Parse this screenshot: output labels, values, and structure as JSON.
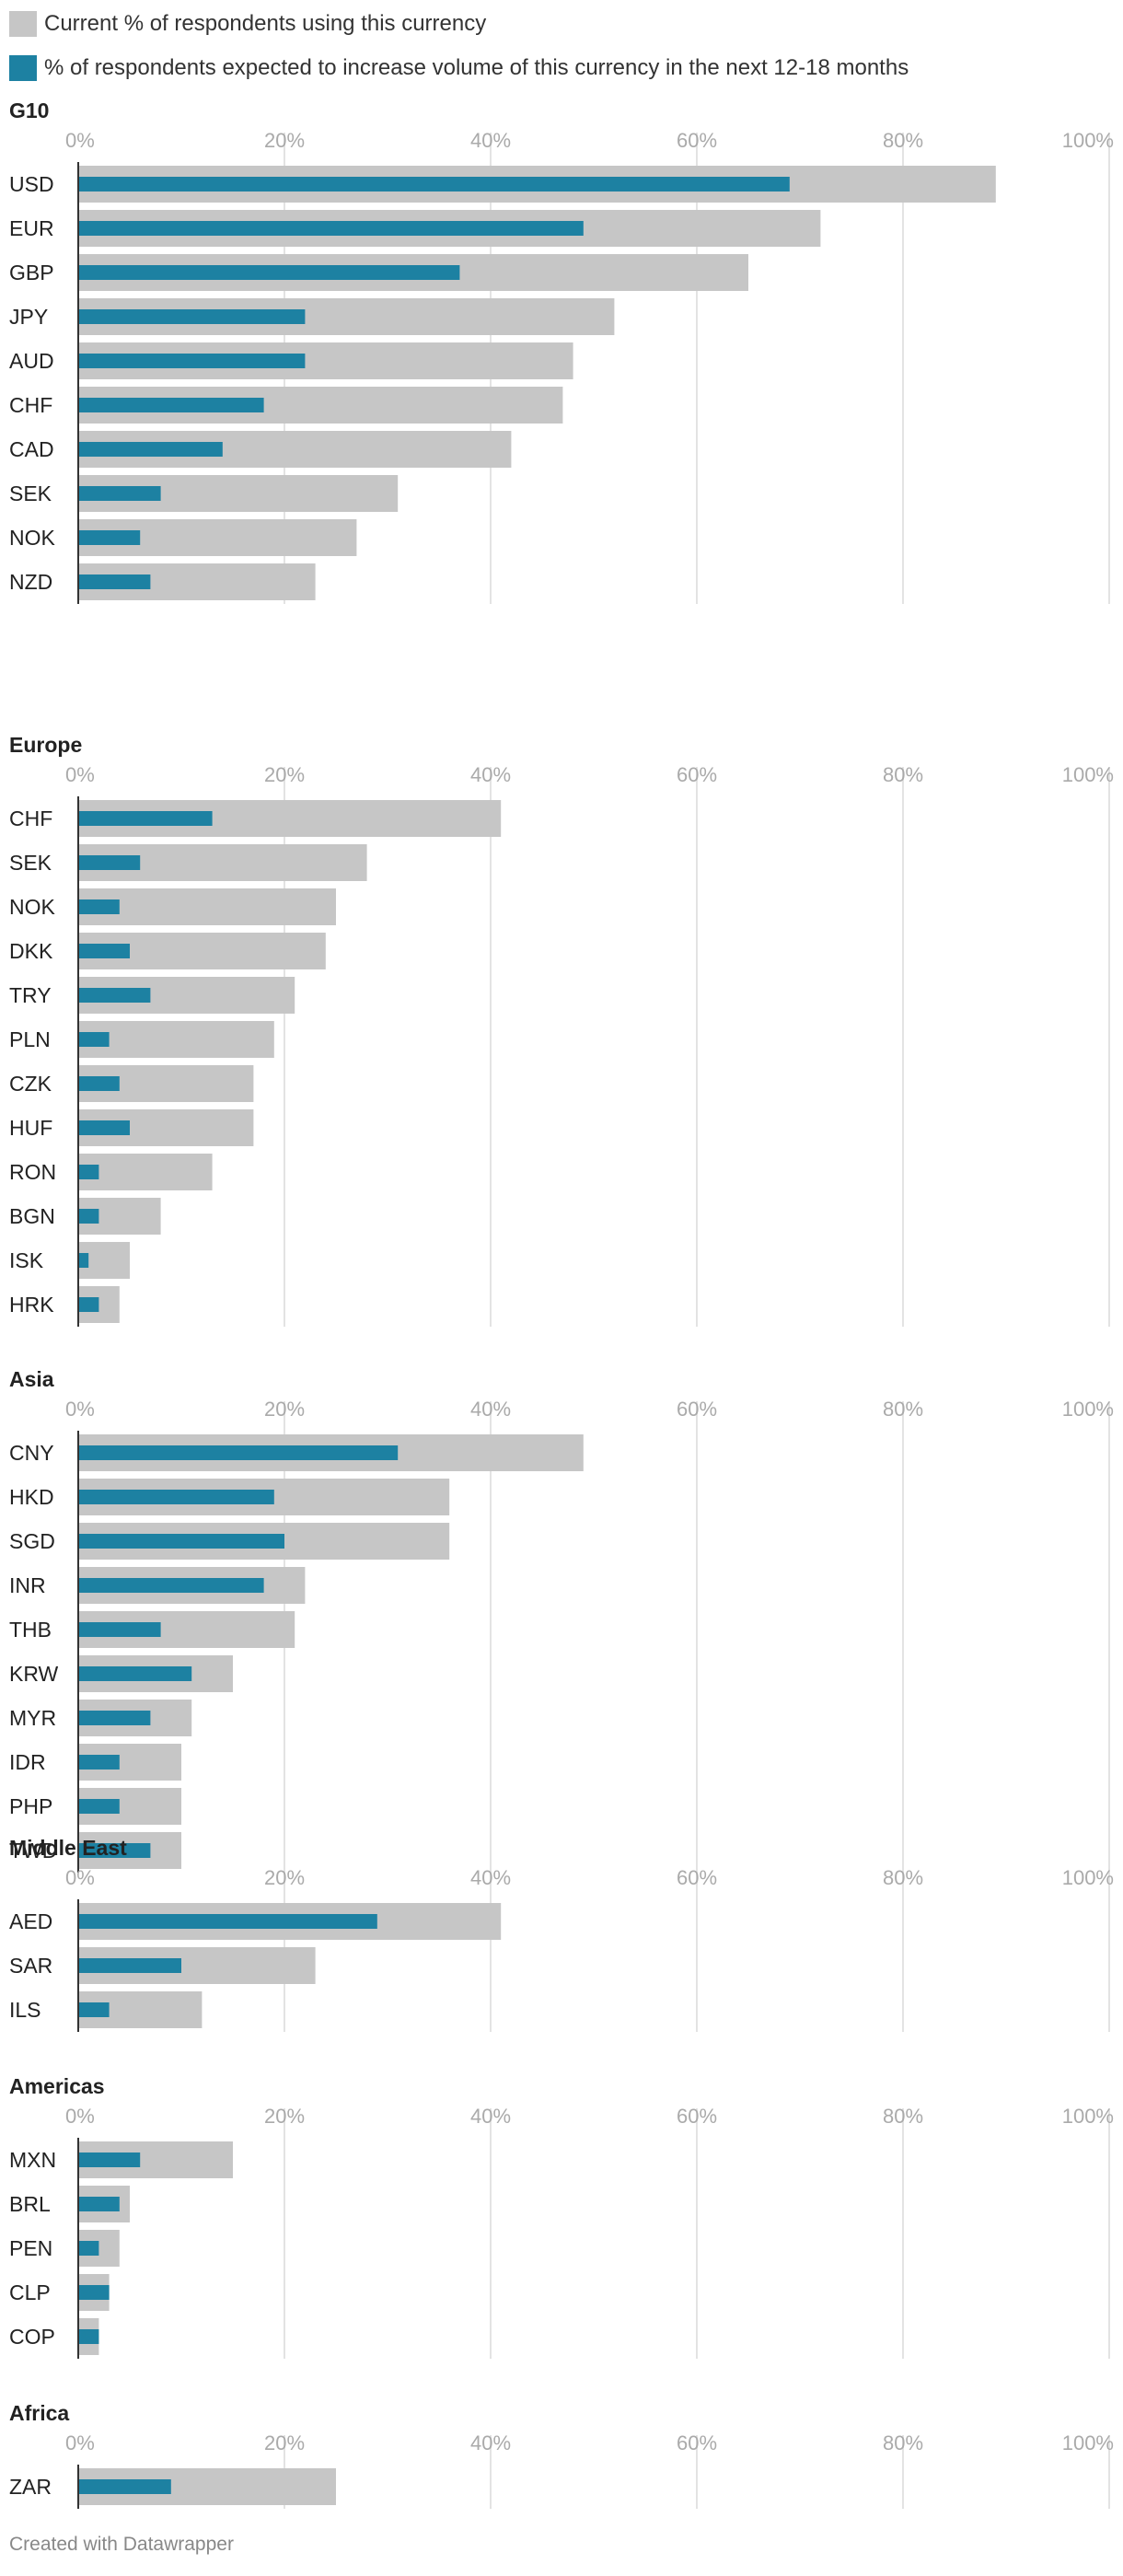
{
  "legend": {
    "current_label": "Current % of respondents using this currency",
    "expected_label": "% of respondents expected to increase volume of this currency in the next 12-18 months",
    "current_color": "#c6c6c6",
    "expected_color": "#1d81a2"
  },
  "footer": "Created with Datawrapper",
  "chart_data": [
    {
      "type": "bar",
      "title": "G10",
      "xlim": [
        0,
        100
      ],
      "ticks": [
        "0%",
        "20%",
        "40%",
        "60%",
        "80%",
        "100%"
      ],
      "categories": [
        "USD",
        "EUR",
        "GBP",
        "JPY",
        "AUD",
        "CHF",
        "CAD",
        "SEK",
        "NOK",
        "NZD"
      ],
      "series": [
        {
          "name": "Current % of respondents using this currency",
          "values": [
            89,
            72,
            65,
            52,
            48,
            47,
            42,
            31,
            27,
            23
          ]
        },
        {
          "name": "% of respondents expected to increase volume of this currency in the next 12-18 months",
          "values": [
            69,
            49,
            37,
            22,
            22,
            18,
            14,
            8,
            6,
            7
          ]
        }
      ]
    },
    {
      "type": "bar",
      "title": "Europe",
      "xlim": [
        0,
        100
      ],
      "ticks": [
        "0%",
        "20%",
        "40%",
        "60%",
        "80%",
        "100%"
      ],
      "categories": [
        "CHF",
        "SEK",
        "NOK",
        "DKK",
        "TRY",
        "PLN",
        "CZK",
        "HUF",
        "RON",
        "BGN",
        "ISK",
        "HRK"
      ],
      "series": [
        {
          "name": "Current % of respondents using this currency",
          "values": [
            41,
            28,
            25,
            24,
            21,
            19,
            17,
            17,
            13,
            8,
            5,
            4
          ]
        },
        {
          "name": "% of respondents expected to increase volume of this currency in the next 12-18 months",
          "values": [
            13,
            6,
            4,
            5,
            7,
            3,
            4,
            5,
            2,
            2,
            1,
            2
          ]
        }
      ]
    },
    {
      "type": "bar",
      "title": "Asia",
      "xlim": [
        0,
        100
      ],
      "ticks": [
        "0%",
        "20%",
        "40%",
        "60%",
        "80%",
        "100%"
      ],
      "categories": [
        "CNY",
        "HKD",
        "SGD",
        "INR",
        "THB",
        "KRW",
        "MYR",
        "IDR",
        "PHP",
        "TWD"
      ],
      "series": [
        {
          "name": "Current % of respondents using this currency",
          "values": [
            49,
            36,
            36,
            22,
            21,
            15,
            11,
            10,
            10,
            10
          ]
        },
        {
          "name": "% of respondents expected to increase volume of this currency in the next 12-18 months",
          "values": [
            31,
            19,
            20,
            18,
            8,
            11,
            7,
            4,
            4,
            7
          ]
        }
      ]
    },
    {
      "type": "bar",
      "title": "Middle East",
      "xlim": [
        0,
        100
      ],
      "ticks": [
        "0%",
        "20%",
        "40%",
        "60%",
        "80%",
        "100%"
      ],
      "categories": [
        "AED",
        "SAR",
        "ILS"
      ],
      "series": [
        {
          "name": "Current % of respondents using this currency",
          "values": [
            41,
            23,
            12
          ]
        },
        {
          "name": "% of respondents expected to increase volume of this currency in the next 12-18 months",
          "values": [
            29,
            10,
            3
          ]
        }
      ]
    },
    {
      "type": "bar",
      "title": "Americas",
      "xlim": [
        0,
        100
      ],
      "ticks": [
        "0%",
        "20%",
        "40%",
        "60%",
        "80%",
        "100%"
      ],
      "categories": [
        "MXN",
        "BRL",
        "PEN",
        "CLP",
        "COP"
      ],
      "series": [
        {
          "name": "Current % of respondents using this currency",
          "values": [
            15,
            5,
            4,
            3,
            2
          ]
        },
        {
          "name": "% of respondents expected to increase volume of this currency in the next 12-18 months",
          "values": [
            6,
            4,
            2,
            3,
            2
          ]
        }
      ]
    },
    {
      "type": "bar",
      "title": "Africa",
      "xlim": [
        0,
        100
      ],
      "ticks": [
        "0%",
        "20%",
        "40%",
        "60%",
        "80%",
        "100%"
      ],
      "categories": [
        "ZAR"
      ],
      "series": [
        {
          "name": "Current % of respondents using this currency",
          "values": [
            25
          ]
        },
        {
          "name": "% of respondents expected to increase volume of this currency in the next 12-18 months",
          "values": [
            9
          ]
        }
      ]
    }
  ]
}
